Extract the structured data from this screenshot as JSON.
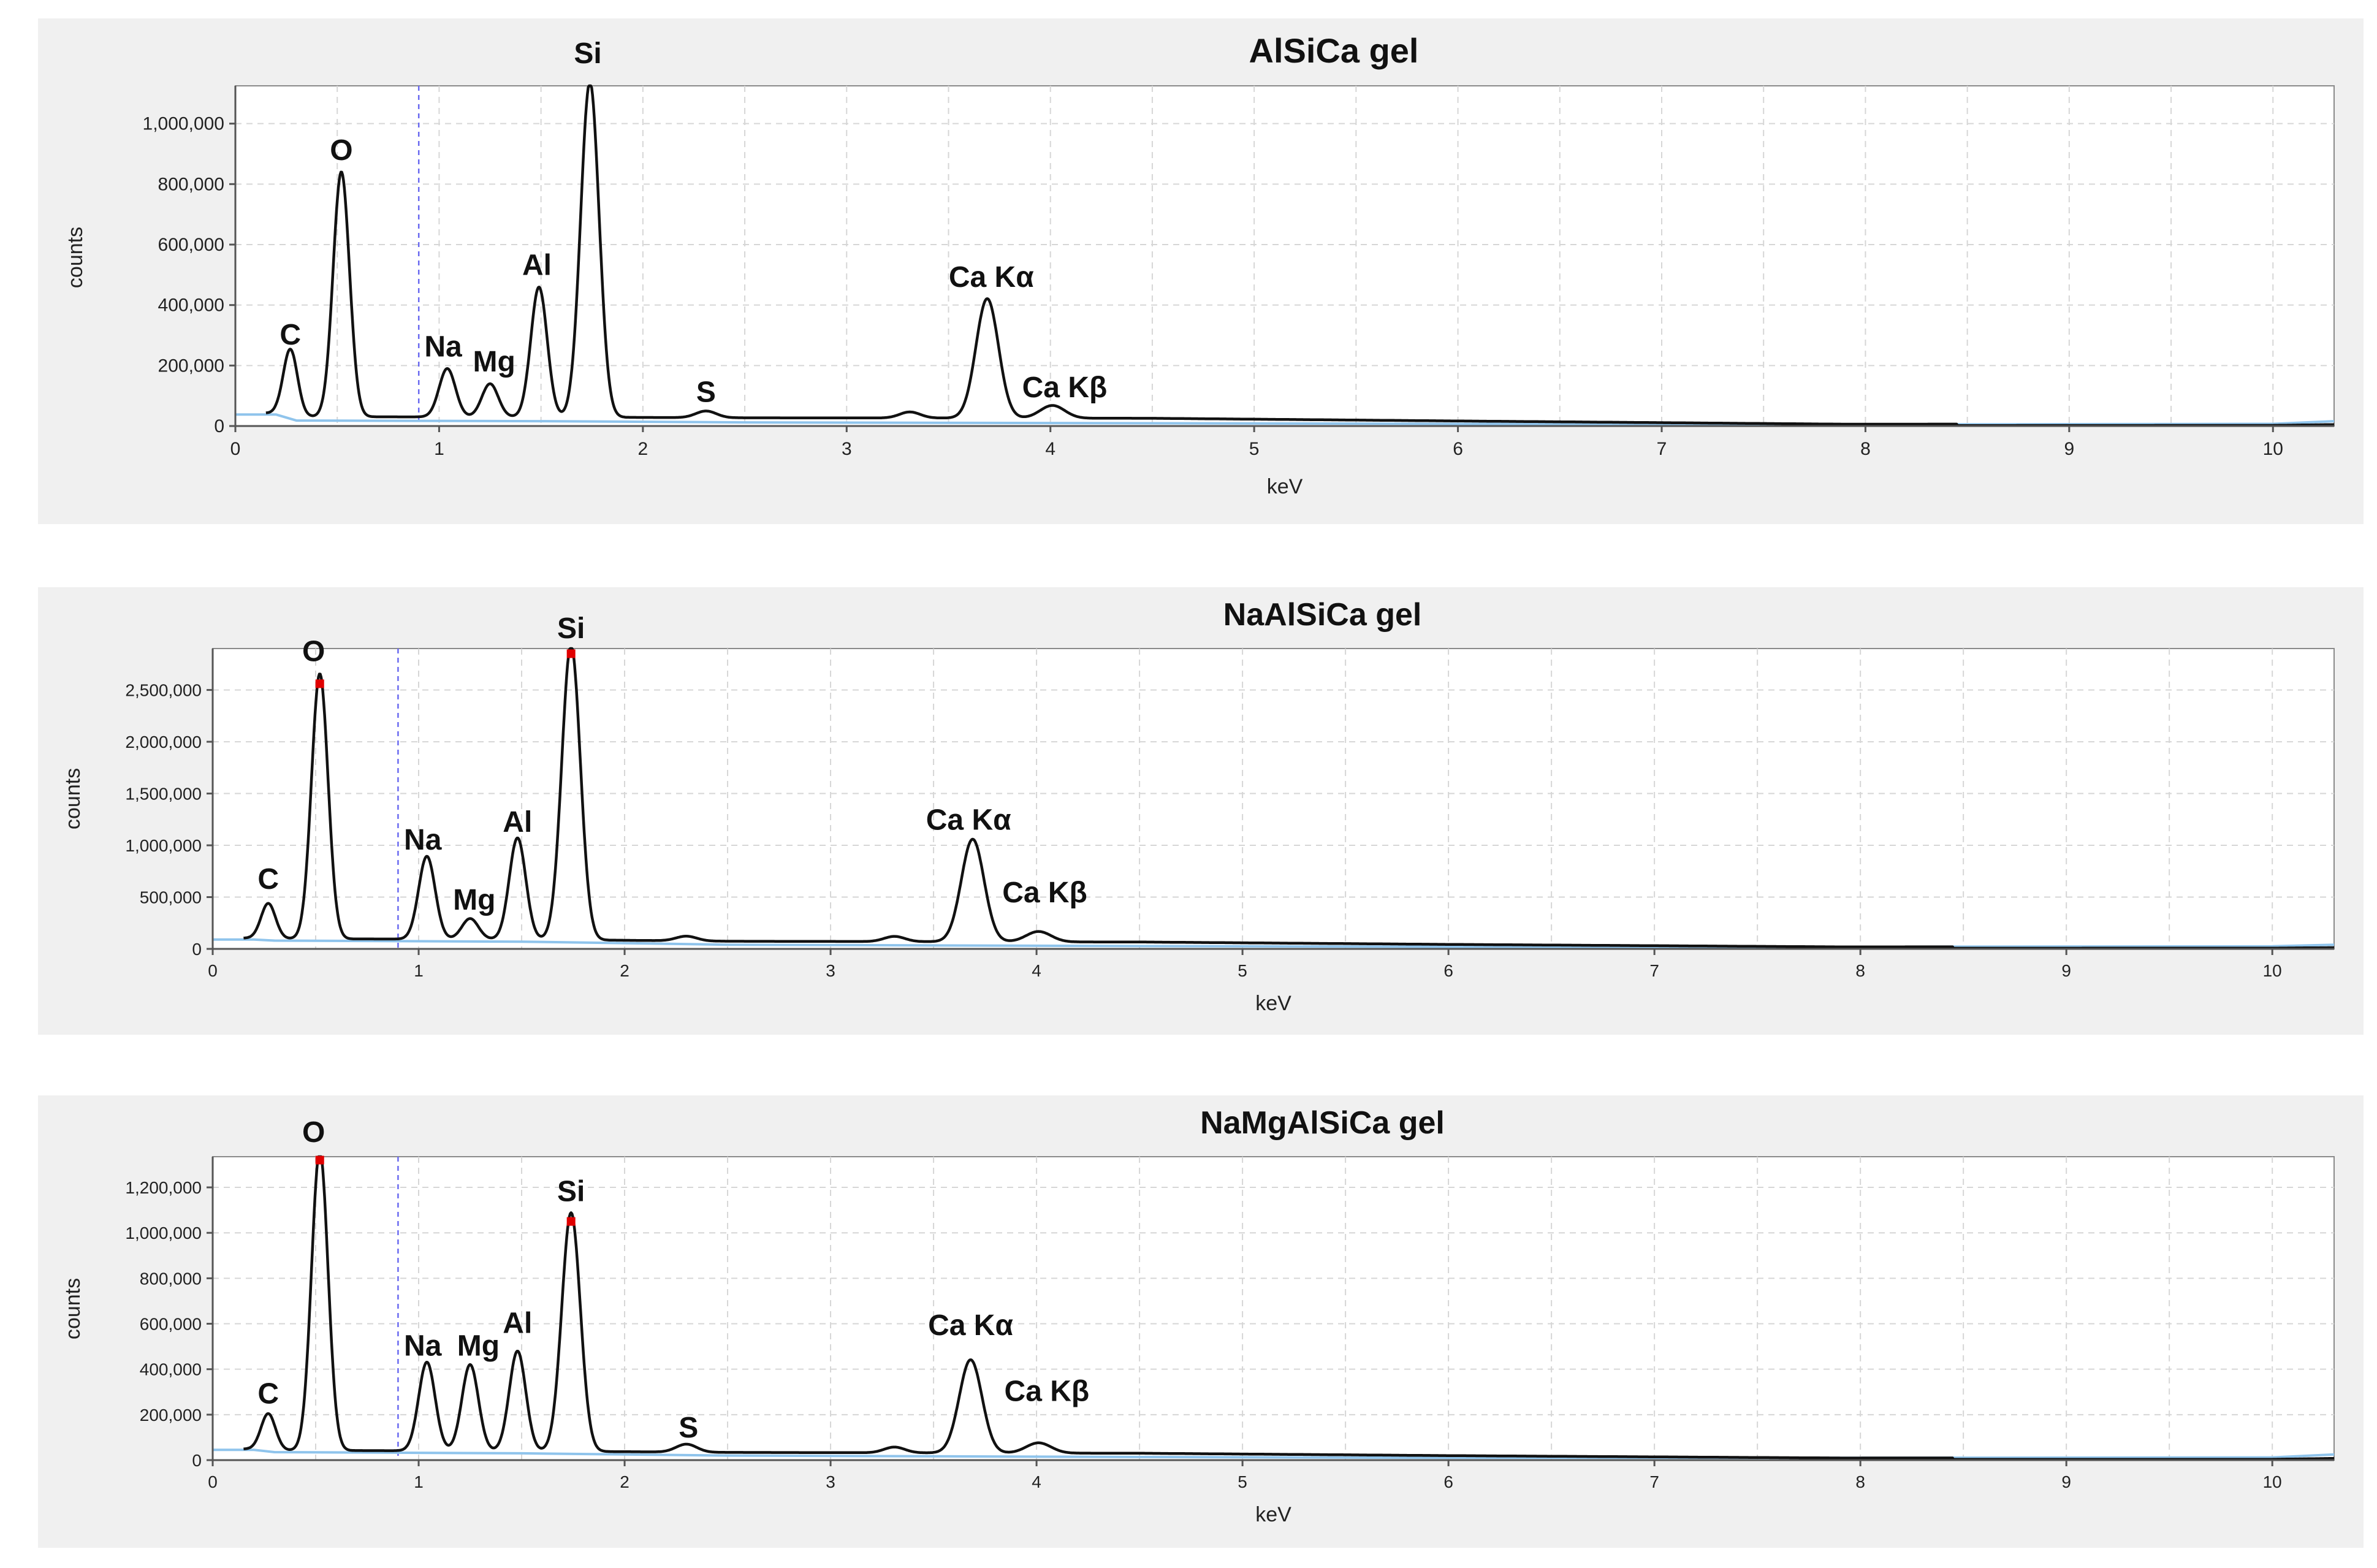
{
  "chart_data": [
    {
      "type": "line",
      "title": "AlSiCa gel",
      "xlabel": "keV",
      "ylabel": "counts",
      "xlim": [
        0,
        10.3
      ],
      "ylim": [
        0,
        1125000
      ],
      "x_ticks": [
        0,
        1,
        2,
        3,
        4,
        5,
        6,
        7,
        8,
        9,
        10
      ],
      "y_ticks": [
        0,
        200000,
        400000,
        600000,
        800000,
        1000000
      ],
      "y_tick_labels": [
        "0",
        "200,000",
        "400,000",
        "600,000",
        "800,000",
        "1,000,000"
      ],
      "marker_kev": 0.9,
      "grid": true,
      "baseline": 20000,
      "background": [
        [
          0,
          38000
        ],
        [
          0.2,
          38000
        ],
        [
          0.3,
          18000
        ],
        [
          1.5,
          16000
        ],
        [
          2.5,
          12000
        ],
        [
          4,
          10000
        ],
        [
          6,
          7000
        ],
        [
          8,
          5000
        ],
        [
          10,
          7000
        ],
        [
          10.3,
          16000
        ]
      ],
      "peaks": [
        {
          "label": "C",
          "kev": 0.27,
          "counts": 220000,
          "width": 0.035
        },
        {
          "label": "O",
          "kev": 0.52,
          "counts": 810000,
          "width": 0.04
        },
        {
          "label": "Na",
          "kev": 1.04,
          "counts": 160000,
          "width": 0.04
        },
        {
          "label": "Mg",
          "kev": 1.25,
          "counts": 110000,
          "width": 0.04
        },
        {
          "label": "Al",
          "kev": 1.49,
          "counts": 430000,
          "width": 0.04
        },
        {
          "label": "Si",
          "kev": 1.74,
          "counts": 1110000,
          "width": 0.045
        },
        {
          "label": "S",
          "kev": 2.31,
          "counts": 22000,
          "width": 0.05
        },
        {
          "label": "",
          "kev": 3.31,
          "counts": 20000,
          "width": 0.05
        },
        {
          "label": "Ca Kα",
          "kev": 3.69,
          "counts": 395000,
          "width": 0.055
        },
        {
          "label": "Ca Kβ",
          "kev": 4.01,
          "counts": 42000,
          "width": 0.06
        }
      ],
      "annotations": [
        {
          "text": "O",
          "kev": 0.52,
          "counts": 880000
        },
        {
          "text": "Si",
          "kev": 1.73,
          "counts": 1200000
        },
        {
          "text": "C",
          "kev": 0.27,
          "counts": 270000
        },
        {
          "text": "Na",
          "kev": 1.02,
          "counts": 230000
        },
        {
          "text": "Mg",
          "kev": 1.27,
          "counts": 180000
        },
        {
          "text": "Al",
          "kev": 1.48,
          "counts": 500000
        },
        {
          "text": "S",
          "kev": 2.31,
          "counts": 80000
        },
        {
          "text": "Ca Kα",
          "kev": 3.71,
          "counts": 460000
        },
        {
          "text": "Ca Kβ",
          "kev": 4.07,
          "counts": 95000
        }
      ],
      "peak_tops": []
    },
    {
      "type": "line",
      "title": "NaAlSiCa gel",
      "xlabel": "keV",
      "ylabel": "counts",
      "xlim": [
        0,
        10.3
      ],
      "ylim": [
        0,
        2900000
      ],
      "x_ticks": [
        0,
        1,
        2,
        3,
        4,
        5,
        6,
        7,
        8,
        9,
        10
      ],
      "y_ticks": [
        0,
        500000,
        1000000,
        1500000,
        2000000,
        2500000
      ],
      "y_tick_labels": [
        "0",
        "500,000",
        "1,000,000",
        "1,500,000",
        "2,000,000",
        "2,500,000"
      ],
      "marker_kev": 0.9,
      "grid": true,
      "baseline": 50000,
      "background": [
        [
          0,
          90000
        ],
        [
          0.2,
          90000
        ],
        [
          0.3,
          80000
        ],
        [
          1.5,
          70000
        ],
        [
          2.5,
          40000
        ],
        [
          4,
          30000
        ],
        [
          6,
          20000
        ],
        [
          8,
          20000
        ],
        [
          10,
          25000
        ],
        [
          10.3,
          40000
        ]
      ],
      "peaks": [
        {
          "label": "C",
          "kev": 0.27,
          "counts": 340000,
          "width": 0.035
        },
        {
          "label": "O",
          "kev": 0.52,
          "counts": 2560000,
          "width": 0.04
        },
        {
          "label": "Na",
          "kev": 1.04,
          "counts": 800000,
          "width": 0.04
        },
        {
          "label": "Mg",
          "kev": 1.25,
          "counts": 200000,
          "width": 0.04
        },
        {
          "label": "Al",
          "kev": 1.48,
          "counts": 980000,
          "width": 0.04
        },
        {
          "label": "Si",
          "kev": 1.74,
          "counts": 2850000,
          "width": 0.045
        },
        {
          "label": "",
          "kev": 2.3,
          "counts": 45000,
          "width": 0.05
        },
        {
          "label": "",
          "kev": 3.31,
          "counts": 50000,
          "width": 0.05
        },
        {
          "label": "Ca Kα",
          "kev": 3.69,
          "counts": 990000,
          "width": 0.055
        },
        {
          "label": "Ca Kβ",
          "kev": 4.01,
          "counts": 100000,
          "width": 0.06
        }
      ],
      "annotations": [
        {
          "text": "O",
          "kev": 0.49,
          "counts": 2780000
        },
        {
          "text": "Si",
          "kev": 1.74,
          "counts": 3000000
        },
        {
          "text": "C",
          "kev": 0.27,
          "counts": 580000
        },
        {
          "text": "Na",
          "kev": 1.02,
          "counts": 960000
        },
        {
          "text": "Mg",
          "kev": 1.27,
          "counts": 380000
        },
        {
          "text": "Al",
          "kev": 1.48,
          "counts": 1130000
        },
        {
          "text": "Ca Kα",
          "kev": 3.67,
          "counts": 1150000
        },
        {
          "text": "Ca Kβ",
          "kev": 4.04,
          "counts": 450000
        }
      ],
      "peak_tops": [
        0.52,
        1.74
      ]
    },
    {
      "type": "line",
      "title": "NaMgAlSiCa gel",
      "xlabel": "keV",
      "ylabel": "counts",
      "xlim": [
        0,
        10.3
      ],
      "ylim": [
        0,
        1335000
      ],
      "x_ticks": [
        0,
        1,
        2,
        3,
        4,
        5,
        6,
        7,
        8,
        9,
        10
      ],
      "y_ticks": [
        0,
        200000,
        400000,
        600000,
        800000,
        1000000,
        1200000
      ],
      "y_tick_labels": [
        "0",
        "200,000",
        "400,000",
        "600,000",
        "800,000",
        "1,000,000",
        "1,200,000"
      ],
      "marker_kev": 0.9,
      "grid": true,
      "baseline": 22000,
      "background": [
        [
          0,
          45000
        ],
        [
          0.2,
          45000
        ],
        [
          0.3,
          35000
        ],
        [
          1.5,
          30000
        ],
        [
          2.5,
          20000
        ],
        [
          4,
          15000
        ],
        [
          6,
          10000
        ],
        [
          8,
          10000
        ],
        [
          10,
          12000
        ],
        [
          10.3,
          25000
        ]
      ],
      "peaks": [
        {
          "label": "C",
          "kev": 0.27,
          "counts": 160000,
          "width": 0.035
        },
        {
          "label": "O",
          "kev": 0.52,
          "counts": 1320000,
          "width": 0.04
        },
        {
          "label": "Na",
          "kev": 1.04,
          "counts": 390000,
          "width": 0.04
        },
        {
          "label": "Mg",
          "kev": 1.25,
          "counts": 380000,
          "width": 0.04
        },
        {
          "label": "Al",
          "kev": 1.48,
          "counts": 440000,
          "width": 0.04
        },
        {
          "label": "Si",
          "kev": 1.74,
          "counts": 1050000,
          "width": 0.045
        },
        {
          "label": "S",
          "kev": 2.3,
          "counts": 35000,
          "width": 0.05
        },
        {
          "label": "",
          "kev": 3.31,
          "counts": 25000,
          "width": 0.05
        },
        {
          "label": "Ca Kα",
          "kev": 3.68,
          "counts": 410000,
          "width": 0.055
        },
        {
          "label": "Ca Kβ",
          "kev": 4.01,
          "counts": 45000,
          "width": 0.06
        }
      ],
      "annotations": [
        {
          "text": "O",
          "kev": 0.49,
          "counts": 1400000
        },
        {
          "text": "Si",
          "kev": 1.74,
          "counts": 1140000
        },
        {
          "text": "C",
          "kev": 0.27,
          "counts": 250000
        },
        {
          "text": "Na",
          "kev": 1.02,
          "counts": 460000
        },
        {
          "text": "Mg",
          "kev": 1.29,
          "counts": 460000
        },
        {
          "text": "Al",
          "kev": 1.48,
          "counts": 560000
        },
        {
          "text": "S",
          "kev": 2.31,
          "counts": 100000
        },
        {
          "text": "Ca Kα",
          "kev": 3.68,
          "counts": 550000
        },
        {
          "text": "Ca Kβ",
          "kev": 4.05,
          "counts": 260000
        }
      ],
      "peak_tops": [
        0.52,
        1.74
      ]
    }
  ],
  "colors": {
    "panel_bg": "#f0f0f0",
    "spectrum": "#111111",
    "background_fit": "#8fc4ec",
    "marker": "#6a6af0",
    "peak_top": "#e00000"
  }
}
